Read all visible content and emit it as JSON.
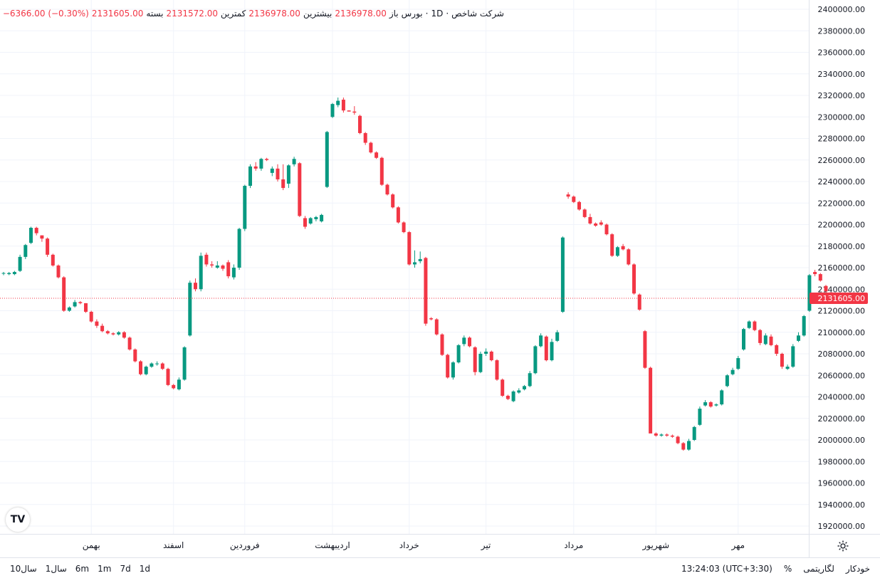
{
  "header": {
    "symbol": "شرکت شاخص",
    "interval": "1D",
    "exchange": "بورس",
    "open_label": "باز",
    "open_value": "2136978.00",
    "high_label": "بیشترین",
    "high_value": "2136978.00",
    "low_label": "کمترین",
    "low_value": "2131572.00",
    "close_label": "بسته",
    "close_value": "2131605.00",
    "change": "−6366.00 (−0.30%)"
  },
  "chart_data": {
    "type": "candlestick",
    "ylim": [
      1910000,
      2405000
    ],
    "y_ticks": [
      1920000,
      1940000,
      1960000,
      1980000,
      2000000,
      2020000,
      2040000,
      2060000,
      2080000,
      2100000,
      2120000,
      2140000,
      2160000,
      2180000,
      2200000,
      2220000,
      2240000,
      2260000,
      2280000,
      2300000,
      2320000,
      2340000,
      2360000,
      2380000,
      2400000
    ],
    "y_tick_labels": [
      "1920000.00",
      "1940000.00",
      "1960000.00",
      "1980000.00",
      "2000000.00",
      "2020000.00",
      "2040000.00",
      "2060000.00",
      "2080000.00",
      "2100000.00",
      "2120000.00",
      "2140000.00",
      "2160000.00",
      "2180000.00",
      "2200000.00",
      "2220000.00",
      "2240000.00",
      "2260000.00",
      "2280000.00",
      "2300000.00",
      "2320000.00",
      "2340000.00",
      "2360000.00",
      "2380000.00",
      "2400000.00"
    ],
    "x_labels": [
      {
        "label": "بهمن",
        "index": 16
      },
      {
        "label": "اسفند",
        "index": 31
      },
      {
        "label": "فروردین",
        "index": 44
      },
      {
        "label": "اردیبهشت",
        "index": 60
      },
      {
        "label": "خرداد",
        "index": 74
      },
      {
        "label": "تیر",
        "index": 88
      },
      {
        "label": "مرداد",
        "index": 104
      },
      {
        "label": "شهریور",
        "index": 119
      },
      {
        "label": "مهر",
        "index": 134
      }
    ],
    "last_price": 2131605,
    "last_price_label": "2131605.00",
    "candles": [
      {
        "o": 2155000,
        "h": 2156000,
        "l": 2153000,
        "c": 2155000
      },
      {
        "o": 2154000,
        "h": 2156000,
        "l": 2153000,
        "c": 2155000
      },
      {
        "o": 2154000,
        "h": 2157000,
        "l": 2153000,
        "c": 2156000
      },
      {
        "o": 2157000,
        "h": 2172000,
        "l": 2156000,
        "c": 2170000
      },
      {
        "o": 2170000,
        "h": 2182000,
        "l": 2168000,
        "c": 2181000
      },
      {
        "o": 2183000,
        "h": 2198000,
        "l": 2182000,
        "c": 2197000
      },
      {
        "o": 2197000,
        "h": 2198000,
        "l": 2190000,
        "c": 2192000
      },
      {
        "o": 2190000,
        "h": 2190000,
        "l": 2184000,
        "c": 2187000
      },
      {
        "o": 2187000,
        "h": 2188000,
        "l": 2170000,
        "c": 2172000
      },
      {
        "o": 2172000,
        "h": 2173000,
        "l": 2161000,
        "c": 2162000
      },
      {
        "o": 2162000,
        "h": 2163000,
        "l": 2150000,
        "c": 2151000
      },
      {
        "o": 2151000,
        "h": 2152000,
        "l": 2119000,
        "c": 2120000
      },
      {
        "o": 2120000,
        "h": 2124000,
        "l": 2119000,
        "c": 2123000
      },
      {
        "o": 2124000,
        "h": 2130000,
        "l": 2123000,
        "c": 2128000
      },
      {
        "o": 2128000,
        "h": 2129000,
        "l": 2126000,
        "c": 2127000
      },
      {
        "o": 2127000,
        "h": 2127000,
        "l": 2118000,
        "c": 2119000
      },
      {
        "o": 2119000,
        "h": 2120000,
        "l": 2109000,
        "c": 2110000
      },
      {
        "o": 2110000,
        "h": 2112000,
        "l": 2104000,
        "c": 2106000
      },
      {
        "o": 2106000,
        "h": 2108000,
        "l": 2100000,
        "c": 2101000
      },
      {
        "o": 2101000,
        "h": 2102000,
        "l": 2098000,
        "c": 2099000
      },
      {
        "o": 2099000,
        "h": 2100000,
        "l": 2097000,
        "c": 2098000
      },
      {
        "o": 2098000,
        "h": 2101000,
        "l": 2097000,
        "c": 2100000
      },
      {
        "o": 2100000,
        "h": 2101000,
        "l": 2094000,
        "c": 2095000
      },
      {
        "o": 2095000,
        "h": 2096000,
        "l": 2083000,
        "c": 2084000
      },
      {
        "o": 2084000,
        "h": 2085000,
        "l": 2072000,
        "c": 2073000
      },
      {
        "o": 2073000,
        "h": 2074000,
        "l": 2060000,
        "c": 2061000
      },
      {
        "o": 2061000,
        "h": 2069000,
        "l": 2060000,
        "c": 2068000
      },
      {
        "o": 2068000,
        "h": 2072000,
        "l": 2067000,
        "c": 2071000
      },
      {
        "o": 2071000,
        "h": 2073000,
        "l": 2069000,
        "c": 2071000
      },
      {
        "o": 2071000,
        "h": 2072000,
        "l": 2065000,
        "c": 2066000
      },
      {
        "o": 2066000,
        "h": 2067000,
        "l": 2050000,
        "c": 2051000
      },
      {
        "o": 2051000,
        "h": 2052000,
        "l": 2047000,
        "c": 2048000
      },
      {
        "o": 2047000,
        "h": 2058000,
        "l": 2046000,
        "c": 2056000
      },
      {
        "o": 2056000,
        "h": 2087000,
        "l": 2055000,
        "c": 2086000
      },
      {
        "o": 2097000,
        "h": 2148000,
        "l": 2096000,
        "c": 2146000
      },
      {
        "o": 2146000,
        "h": 2150000,
        "l": 2138000,
        "c": 2140000
      },
      {
        "o": 2140000,
        "h": 2174000,
        "l": 2138000,
        "c": 2171000
      },
      {
        "o": 2172000,
        "h": 2174000,
        "l": 2161000,
        "c": 2163000
      },
      {
        "o": 2163000,
        "h": 2166000,
        "l": 2160000,
        "c": 2162000
      },
      {
        "o": 2160000,
        "h": 2166000,
        "l": 2159000,
        "c": 2162000
      },
      {
        "o": 2162000,
        "h": 2163000,
        "l": 2157000,
        "c": 2159000
      },
      {
        "o": 2165000,
        "h": 2167000,
        "l": 2150000,
        "c": 2152000
      },
      {
        "o": 2151000,
        "h": 2163000,
        "l": 2149000,
        "c": 2160000
      },
      {
        "o": 2160000,
        "h": 2197000,
        "l": 2158000,
        "c": 2196000
      },
      {
        "o": 2196000,
        "h": 2237000,
        "l": 2194000,
        "c": 2236000
      },
      {
        "o": 2236000,
        "h": 2256000,
        "l": 2234000,
        "c": 2254000
      },
      {
        "o": 2254000,
        "h": 2258000,
        "l": 2250000,
        "c": 2252000
      },
      {
        "o": 2252000,
        "h": 2262000,
        "l": 2250000,
        "c": 2261000
      },
      {
        "o": 2261000,
        "h": 2262000,
        "l": 2259000,
        "c": 2260000
      },
      {
        "o": 2248000,
        "h": 2254000,
        "l": 2245000,
        "c": 2252000
      },
      {
        "o": 2252000,
        "h": 2256000,
        "l": 2240000,
        "c": 2242000
      },
      {
        "o": 2242000,
        "h": 2256000,
        "l": 2232000,
        "c": 2234000
      },
      {
        "o": 2238000,
        "h": 2256000,
        "l": 2234000,
        "c": 2255000
      },
      {
        "o": 2256000,
        "h": 2263000,
        "l": 2254000,
        "c": 2261000
      },
      {
        "o": 2257000,
        "h": 2258000,
        "l": 2207000,
        "c": 2208000
      },
      {
        "o": 2206000,
        "h": 2208000,
        "l": 2196000,
        "c": 2198000
      },
      {
        "o": 2201000,
        "h": 2207000,
        "l": 2200000,
        "c": 2206000
      },
      {
        "o": 2205000,
        "h": 2208000,
        "l": 2203000,
        "c": 2207000
      },
      {
        "o": 2203000,
        "h": 2210000,
        "l": 2202000,
        "c": 2209000
      },
      {
        "o": 2235000,
        "h": 2287000,
        "l": 2234000,
        "c": 2286000
      },
      {
        "o": 2300000,
        "h": 2313000,
        "l": 2299000,
        "c": 2312000
      },
      {
        "o": 2311000,
        "h": 2318000,
        "l": 2309000,
        "c": 2315000
      },
      {
        "o": 2316000,
        "h": 2318000,
        "l": 2304000,
        "c": 2306000
      },
      {
        "o": 2306000,
        "h": 2306000,
        "l": 2305000,
        "c": 2305000
      },
      {
        "o": 2305000,
        "h": 2310000,
        "l": 2302000,
        "c": 2304000
      },
      {
        "o": 2301000,
        "h": 2302000,
        "l": 2284000,
        "c": 2285000
      },
      {
        "o": 2285000,
        "h": 2286000,
        "l": 2274000,
        "c": 2276000
      },
      {
        "o": 2276000,
        "h": 2277000,
        "l": 2266000,
        "c": 2267000
      },
      {
        "o": 2267000,
        "h": 2268000,
        "l": 2261000,
        "c": 2262000
      },
      {
        "o": 2262000,
        "h": 2263000,
        "l": 2236000,
        "c": 2237000
      },
      {
        "o": 2237000,
        "h": 2238000,
        "l": 2227000,
        "c": 2228000
      },
      {
        "o": 2228000,
        "h": 2229000,
        "l": 2215000,
        "c": 2216000
      },
      {
        "o": 2216000,
        "h": 2217000,
        "l": 2201000,
        "c": 2202000
      },
      {
        "o": 2202000,
        "h": 2203000,
        "l": 2192000,
        "c": 2193000
      },
      {
        "o": 2193000,
        "h": 2194000,
        "l": 2162000,
        "c": 2163000
      },
      {
        "o": 2163000,
        "h": 2176000,
        "l": 2160000,
        "c": 2165000
      },
      {
        "o": 2166000,
        "h": 2175000,
        "l": 2164000,
        "c": 2168000
      },
      {
        "o": 2169000,
        "h": 2170000,
        "l": 2106000,
        "c": 2108000
      },
      {
        "o": 2113000,
        "h": 2114000,
        "l": 2111000,
        "c": 2112000
      },
      {
        "o": 2112000,
        "h": 2113000,
        "l": 2097000,
        "c": 2098000
      },
      {
        "o": 2098000,
        "h": 2099000,
        "l": 2078000,
        "c": 2079000
      },
      {
        "o": 2079000,
        "h": 2080000,
        "l": 2057000,
        "c": 2058000
      },
      {
        "o": 2058000,
        "h": 2073000,
        "l": 2056000,
        "c": 2072000
      },
      {
        "o": 2072000,
        "h": 2089000,
        "l": 2071000,
        "c": 2088000
      },
      {
        "o": 2089000,
        "h": 2097000,
        "l": 2087000,
        "c": 2095000
      },
      {
        "o": 2095000,
        "h": 2096000,
        "l": 2086000,
        "c": 2087000
      },
      {
        "o": 2086000,
        "h": 2087000,
        "l": 2060000,
        "c": 2063000
      },
      {
        "o": 2063000,
        "h": 2082000,
        "l": 2062000,
        "c": 2080000
      },
      {
        "o": 2080000,
        "h": 2085000,
        "l": 2078000,
        "c": 2082000
      },
      {
        "o": 2082000,
        "h": 2083000,
        "l": 2073000,
        "c": 2074000
      },
      {
        "o": 2074000,
        "h": 2075000,
        "l": 2055000,
        "c": 2056000
      },
      {
        "o": 2056000,
        "h": 2057000,
        "l": 2040000,
        "c": 2041000
      },
      {
        "o": 2041000,
        "h": 2042000,
        "l": 2037000,
        "c": 2038000
      },
      {
        "o": 2036000,
        "h": 2046000,
        "l": 2035000,
        "c": 2045000
      },
      {
        "o": 2044000,
        "h": 2048000,
        "l": 2043000,
        "c": 2046000
      },
      {
        "o": 2047000,
        "h": 2051000,
        "l": 2046000,
        "c": 2050000
      },
      {
        "o": 2050000,
        "h": 2064000,
        "l": 2049000,
        "c": 2062000
      },
      {
        "o": 2062000,
        "h": 2088000,
        "l": 2061000,
        "c": 2087000
      },
      {
        "o": 2087000,
        "h": 2099000,
        "l": 2086000,
        "c": 2097000
      },
      {
        "o": 2096000,
        "h": 2097000,
        "l": 2073000,
        "c": 2074000
      },
      {
        "o": 2074000,
        "h": 2094000,
        "l": 2073000,
        "c": 2091000
      },
      {
        "o": 2092000,
        "h": 2102000,
        "l": 2091000,
        "c": 2100000
      },
      {
        "o": 2119000,
        "h": 2189000,
        "l": 2118000,
        "c": 2188000
      },
      {
        "o": 2228000,
        "h": 2230000,
        "l": 2224000,
        "c": 2226000
      },
      {
        "o": 2226000,
        "h": 2227000,
        "l": 2220000,
        "c": 2221000
      },
      {
        "o": 2221000,
        "h": 2222000,
        "l": 2213000,
        "c": 2214000
      },
      {
        "o": 2214000,
        "h": 2215000,
        "l": 2206000,
        "c": 2207000
      },
      {
        "o": 2207000,
        "h": 2210000,
        "l": 2200000,
        "c": 2201000
      },
      {
        "o": 2201000,
        "h": 2202000,
        "l": 2198000,
        "c": 2199000
      },
      {
        "o": 2202000,
        "h": 2204000,
        "l": 2199000,
        "c": 2200000
      },
      {
        "o": 2200000,
        "h": 2201000,
        "l": 2190000,
        "c": 2191000
      },
      {
        "o": 2191000,
        "h": 2192000,
        "l": 2170000,
        "c": 2171000
      },
      {
        "o": 2171000,
        "h": 2180000,
        "l": 2170000,
        "c": 2179000
      },
      {
        "o": 2180000,
        "h": 2182000,
        "l": 2176000,
        "c": 2177000
      },
      {
        "o": 2177000,
        "h": 2178000,
        "l": 2162000,
        "c": 2163000
      },
      {
        "o": 2163000,
        "h": 2164000,
        "l": 2135000,
        "c": 2136000
      },
      {
        "o": 2135000,
        "h": 2136000,
        "l": 2120000,
        "c": 2121000
      },
      {
        "o": 2101000,
        "h": 2102000,
        "l": 2066000,
        "c": 2067000
      },
      {
        "o": 2067000,
        "h": 2068000,
        "l": 2007000,
        "c": 2006000
      },
      {
        "o": 2006000,
        "h": 2007000,
        "l": 2003000,
        "c": 2004000
      },
      {
        "o": 2004000,
        "h": 2006000,
        "l": 2003000,
        "c": 2005000
      },
      {
        "o": 2005000,
        "h": 2006000,
        "l": 2003000,
        "c": 2004000
      },
      {
        "o": 2004000,
        "h": 2005000,
        "l": 2002000,
        "c": 2003000
      },
      {
        "o": 2003000,
        "h": 2004000,
        "l": 1996000,
        "c": 1997000
      },
      {
        "o": 1997000,
        "h": 1998000,
        "l": 1990000,
        "c": 1991000
      },
      {
        "o": 1991000,
        "h": 2001000,
        "l": 1990000,
        "c": 1999000
      },
      {
        "o": 2000000,
        "h": 2013000,
        "l": 1999000,
        "c": 2012000
      },
      {
        "o": 2014000,
        "h": 2031000,
        "l": 2013000,
        "c": 2029000
      },
      {
        "o": 2032000,
        "h": 2037000,
        "l": 2031000,
        "c": 2035000
      },
      {
        "o": 2035000,
        "h": 2036000,
        "l": 2030000,
        "c": 2031000
      },
      {
        "o": 2032000,
        "h": 2034000,
        "l": 2031000,
        "c": 2033000
      },
      {
        "o": 2033000,
        "h": 2047000,
        "l": 2032000,
        "c": 2046000
      },
      {
        "o": 2050000,
        "h": 2061000,
        "l": 2049000,
        "c": 2060000
      },
      {
        "o": 2061000,
        "h": 2067000,
        "l": 2060000,
        "c": 2065000
      },
      {
        "o": 2066000,
        "h": 2078000,
        "l": 2065000,
        "c": 2076000
      },
      {
        "o": 2084000,
        "h": 2104000,
        "l": 2083000,
        "c": 2103000
      },
      {
        "o": 2104000,
        "h": 2111000,
        "l": 2103000,
        "c": 2110000
      },
      {
        "o": 2110000,
        "h": 2111000,
        "l": 2101000,
        "c": 2102000
      },
      {
        "o": 2102000,
        "h": 2103000,
        "l": 2088000,
        "c": 2090000
      },
      {
        "o": 2089000,
        "h": 2099000,
        "l": 2088000,
        "c": 2097000
      },
      {
        "o": 2096000,
        "h": 2098000,
        "l": 2087000,
        "c": 2088000
      },
      {
        "o": 2088000,
        "h": 2089000,
        "l": 2078000,
        "c": 2080000
      },
      {
        "o": 2080000,
        "h": 2081000,
        "l": 2066000,
        "c": 2068000
      },
      {
        "o": 2066000,
        "h": 2070000,
        "l": 2065000,
        "c": 2068000
      },
      {
        "o": 2068000,
        "h": 2089000,
        "l": 2067000,
        "c": 2087000
      },
      {
        "o": 2092000,
        "h": 2100000,
        "l": 2091000,
        "c": 2097000
      },
      {
        "o": 2097000,
        "h": 2116000,
        "l": 2096000,
        "c": 2115000
      },
      {
        "o": 2120000,
        "h": 2154000,
        "l": 2119000,
        "c": 2153000
      },
      {
        "o": 2156000,
        "h": 2158000,
        "l": 2152000,
        "c": 2154000
      },
      {
        "o": 2154000,
        "h": 2155000,
        "l": 2147000,
        "c": 2148000
      },
      {
        "o": 2143000,
        "h": 2144000,
        "l": 2137000,
        "c": 2138000
      },
      {
        "o": 2137000,
        "h": 2137000,
        "l": 2131000,
        "c": 2132000
      }
    ]
  },
  "bottom": {
    "ranges": [
      "10سال",
      "1سال",
      "6m",
      "1m",
      "7d",
      "1d"
    ],
    "time": "13:24:03 (UTC+3:30)",
    "percent": "%",
    "log": "لگاریتمی",
    "auto": "خودکار"
  },
  "colors": {
    "up": "#089981",
    "down": "#f23645",
    "grid": "#f0f3fa",
    "axis_text": "#131722",
    "price_tag": "#f23645"
  },
  "logo": {
    "text": "TV"
  }
}
